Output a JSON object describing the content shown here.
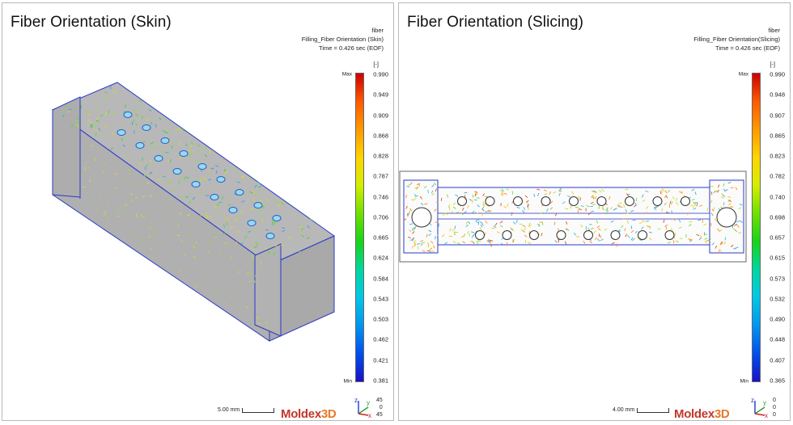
{
  "panels": {
    "skin": {
      "title": "Fiber Orientation (Skin)",
      "info": {
        "line1": "fiber",
        "line2": "Filling_Fiber Orientation (Skin)",
        "line3": "Time = 0.426 sec (EOF)"
      },
      "unit": "[-]",
      "max_label": "Max",
      "min_label": "Min",
      "ticks": [
        "0.990",
        "0.949",
        "0.909",
        "0.868",
        "0.828",
        "0.787",
        "0.746",
        "0.706",
        "0.665",
        "0.624",
        "0.584",
        "0.543",
        "0.503",
        "0.462",
        "0.421",
        "0.381"
      ],
      "scale_label": "5.00 mm",
      "axis_values": [
        "45",
        "0",
        "45"
      ]
    },
    "slice": {
      "title": "Fiber Orientation (Slicing)",
      "info": {
        "line1": "fiber",
        "line2": "Filling_Fiber Orientation(Slicing)",
        "line3": "Time = 0.426 sec (EOF)"
      },
      "unit": "[-]",
      "max_label": "Max",
      "min_label": "Min",
      "ticks": [
        "0.990",
        "0.948",
        "0.907",
        "0.865",
        "0.823",
        "0.782",
        "0.740",
        "0.698",
        "0.657",
        "0.615",
        "0.573",
        "0.532",
        "0.490",
        "0.448",
        "0.407",
        "0.365"
      ],
      "scale_label": "4.00 mm",
      "axis_values": [
        "0",
        "0",
        "0"
      ]
    }
  },
  "logo": {
    "main": "Moldex",
    "suffix": "3D"
  },
  "axes": {
    "z": "z",
    "y": "y",
    "x": "x"
  },
  "colors": {
    "colorbar": [
      "#cc0000",
      "#ff5a00",
      "#ff9a00",
      "#ffd400",
      "#d4ee00",
      "#6fe000",
      "#18d418",
      "#00d7a0",
      "#00c8e6",
      "#0096f0",
      "#0050ea",
      "#1a10c8"
    ],
    "model_gray": "#b4b4b4",
    "edge_blue": "#2a38c8"
  }
}
